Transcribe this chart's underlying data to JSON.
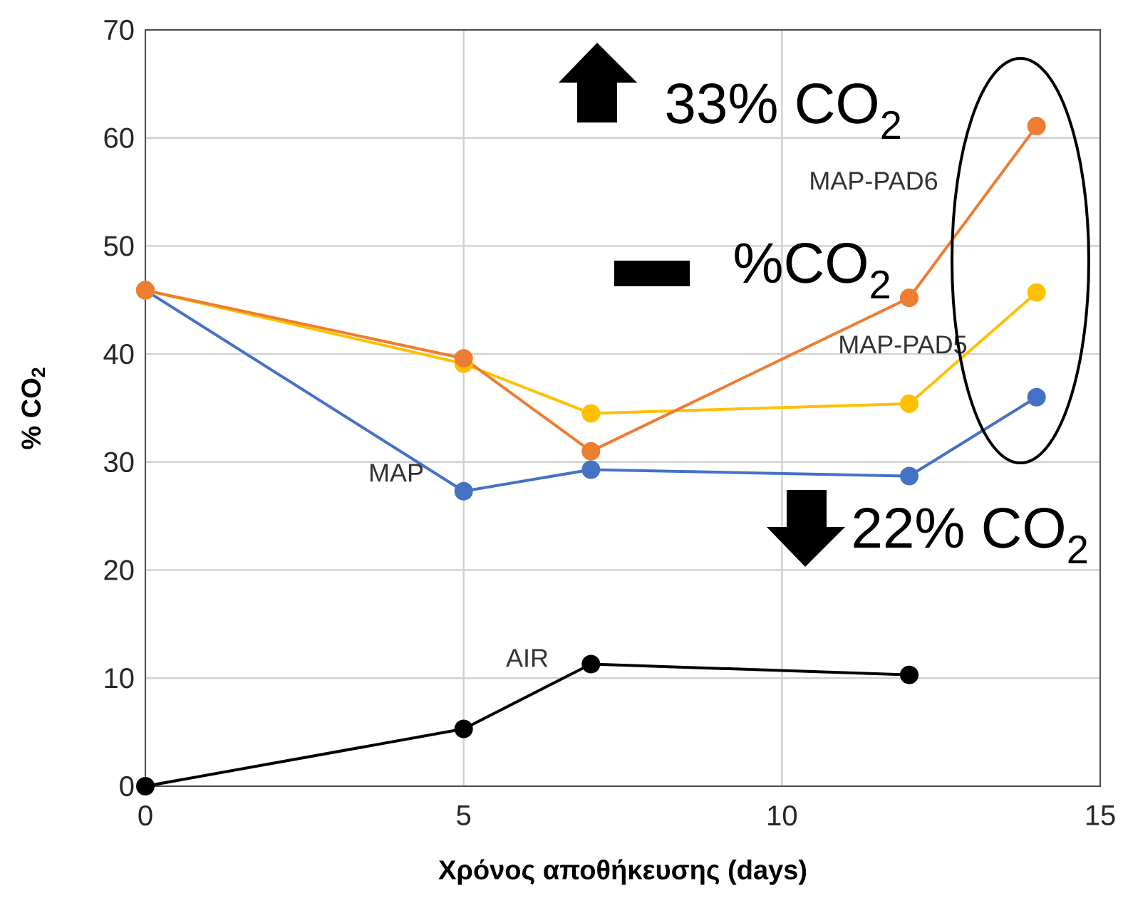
{
  "chart_data": {
    "type": "line",
    "xlabel": "Χρόνος αποθήκευσης (days)",
    "ylabel": "% CO$_{2}$",
    "xlim": [
      0,
      15
    ],
    "xticks": [
      0,
      5,
      10,
      15
    ],
    "ylim": [
      0,
      70
    ],
    "yticks": [
      0,
      10,
      20,
      30,
      40,
      50,
      60,
      70
    ],
    "grid": true,
    "marker": "circle",
    "series": [
      {
        "name": "MAP",
        "color": "#4472c4",
        "x": [
          0,
          5,
          7,
          12,
          14
        ],
        "values": [
          45.9,
          27.3,
          29.3,
          28.7,
          36.0
        ]
      },
      {
        "name": "MAP-PAD5",
        "color": "#ffc000",
        "x": [
          0,
          5,
          7,
          12,
          14
        ],
        "values": [
          45.9,
          39.1,
          34.5,
          35.4,
          45.7
        ]
      },
      {
        "name": "MAP-PAD6",
        "color": "#ed7d31",
        "x": [
          0,
          5,
          7,
          12,
          14
        ],
        "values": [
          45.9,
          39.6,
          31.0,
          45.2,
          61.1
        ]
      },
      {
        "name": "AIR",
        "color": "#000000",
        "x": [
          0,
          5,
          7,
          12
        ],
        "values": [
          0,
          5.3,
          11.3,
          10.3
        ]
      }
    ],
    "annotations": [
      "33% CO$_{2}$",
      "%CO$_{2}$",
      "22% CO$_{2}$"
    ]
  }
}
